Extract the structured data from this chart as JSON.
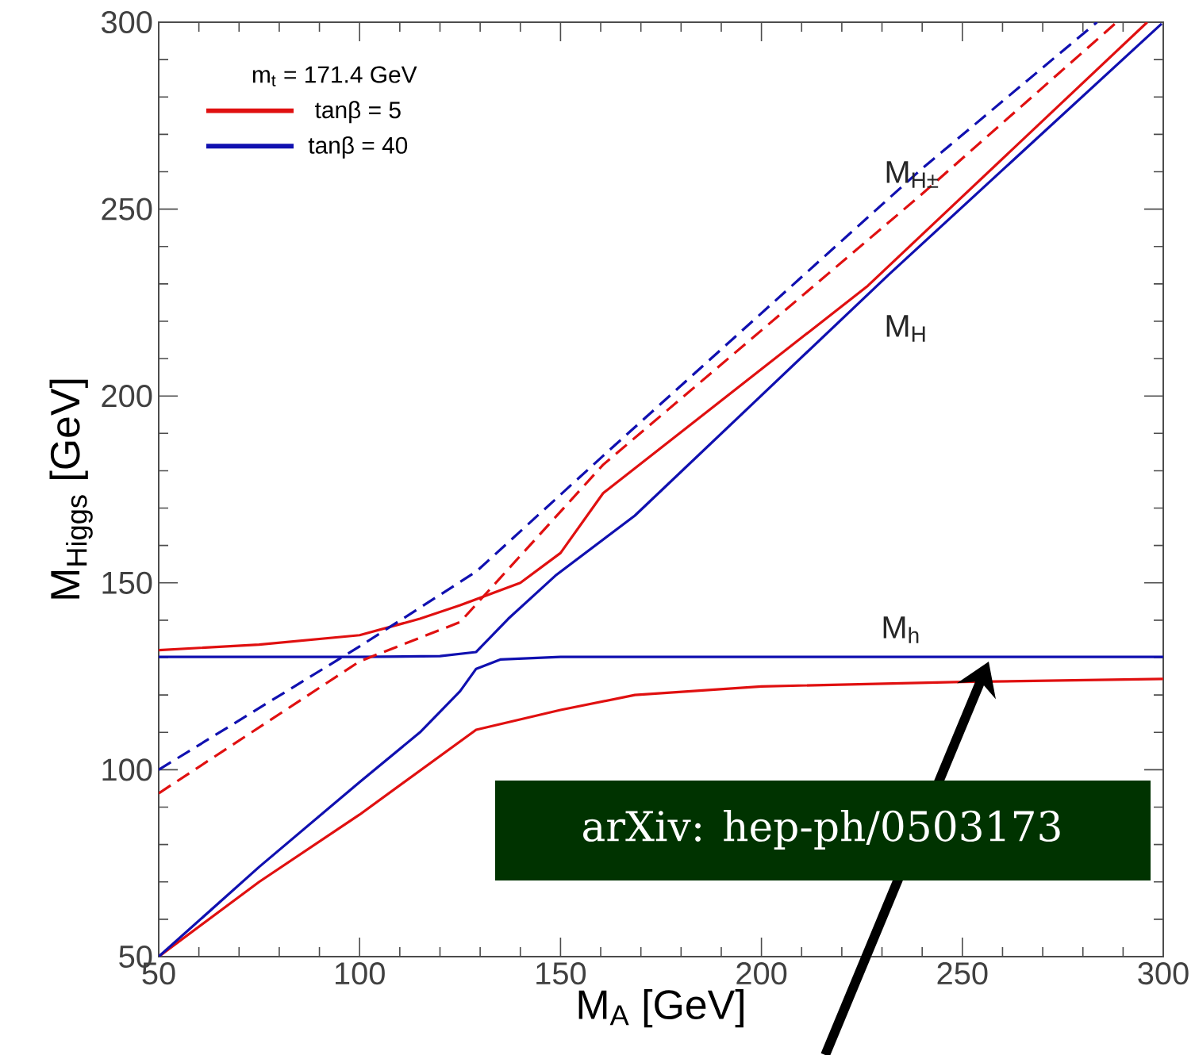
{
  "chart_data": {
    "type": "line",
    "xlabel": "M$_{A}$ [GeV]",
    "ylabel": "M$_{Higgs}$ [GeV]",
    "legend_title": "m$_{t}$ = 171.4 GeV",
    "legend": "top left",
    "xlim": [
      50,
      300
    ],
    "ylim": [
      50,
      300
    ],
    "xticks": [
      50,
      100,
      150,
      200,
      250,
      300
    ],
    "yticks": [
      50,
      100,
      150,
      200,
      250,
      300
    ],
    "grid": false,
    "series": [
      {
        "name": "tanβ = 5",
        "color": "#e01010",
        "line_style": "solid",
        "x": [
          50,
          75,
          100,
          129,
          150,
          168.5,
          200,
          250,
          300
        ],
        "values": [
          50,
          70,
          88,
          110.7,
          116,
          120,
          122.3,
          123.5,
          124.3
        ]
      },
      {
        "name": "tanβ = 40",
        "color": "#1010b0",
        "line_style": "solid",
        "x": [
          50,
          75,
          100,
          115,
          125,
          129,
          135,
          150,
          200,
          300
        ],
        "values": [
          50,
          74,
          96.7,
          110,
          121,
          127,
          129.5,
          130.2,
          130.2,
          130.2
        ]
      },
      {
        "color": "#e01010",
        "line_style": "solid",
        "x": [
          50,
          75,
          100,
          115,
          125,
          140,
          150,
          160.6,
          226.5,
          296
        ],
        "values": [
          132,
          133.5,
          136,
          140.4,
          144,
          150,
          158,
          174,
          229.5,
          300
        ]
      },
      {
        "color": "#1010b0",
        "line_style": "solid",
        "x": [
          50,
          100,
          120,
          129,
          137,
          148.7,
          168.5,
          231.7,
          299.6
        ],
        "values": [
          130.2,
          130.2,
          130.4,
          131.5,
          140.4,
          151.9,
          168,
          232.5,
          299.6
        ]
      },
      {
        "color": "#e01010",
        "line_style": "dashed",
        "x": [
          50,
          100,
          125,
          160.6,
          239.6,
          288
        ],
        "values": [
          93.7,
          129,
          139.5,
          181.6,
          253.7,
          299.6
        ]
      },
      {
        "color": "#1010b0",
        "line_style": "dashed",
        "x": [
          50,
          100,
          129,
          160.6,
          239.6,
          283.5
        ],
        "values": [
          100,
          133,
          153,
          184,
          260.5,
          300
        ]
      }
    ],
    "annotations": [
      "M$_{H±}$",
      "M$_{H}$",
      "M$_{h}$",
      "arXiv: hep-ph/0503173"
    ]
  }
}
